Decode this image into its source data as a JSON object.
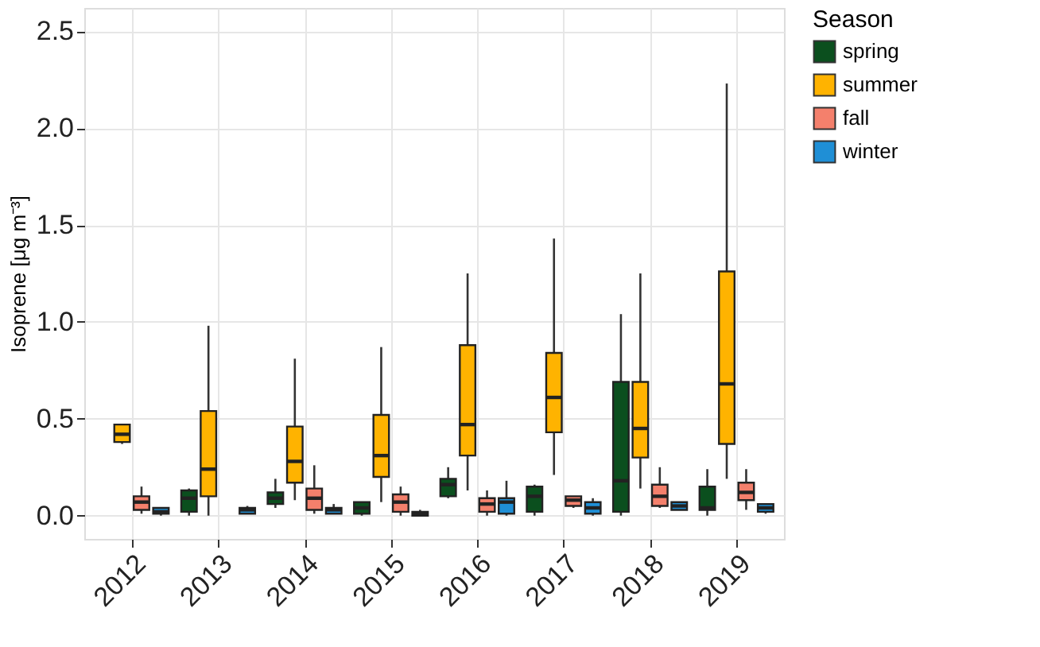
{
  "chart_data": {
    "type": "box",
    "ylabel": "Isoprene [μg m⁻³]",
    "legend_title": "Season",
    "legend": "right",
    "grid": true,
    "categories": [
      "2012",
      "2013",
      "2014",
      "2015",
      "2016",
      "2017",
      "2018",
      "2019"
    ],
    "ylim": [
      -0.12,
      2.62
    ],
    "yticks": [
      {
        "value": 0,
        "label": "0.0"
      },
      {
        "value": 0.5,
        "label": "0.5"
      },
      {
        "value": 1,
        "label": "1.0"
      },
      {
        "value": 1.5,
        "label": "1.5"
      },
      {
        "value": 2,
        "label": "2.0"
      },
      {
        "value": 2.5,
        "label": "2.5"
      }
    ],
    "series": [
      {
        "name": "spring",
        "color": "#0b4f1e",
        "boxes": [
          null,
          {
            "low": 0,
            "q1": 0.02,
            "median": 0.09,
            "q3": 0.13,
            "high": 0.14
          },
          {
            "low": 0.04,
            "q1": 0.06,
            "median": 0.09,
            "q3": 0.12,
            "high": 0.19
          },
          {
            "low": 0,
            "q1": 0.01,
            "median": 0.04,
            "q3": 0.07,
            "high": 0.07
          },
          {
            "low": 0.09,
            "q1": 0.1,
            "median": 0.16,
            "q3": 0.19,
            "high": 0.25
          },
          {
            "low": 0,
            "q1": 0.02,
            "median": 0.1,
            "q3": 0.15,
            "high": 0.16
          },
          {
            "low": 0,
            "q1": 0.02,
            "median": 0.18,
            "q3": 0.69,
            "high": 1.04
          },
          {
            "low": 0,
            "q1": 0.03,
            "median": 0.04,
            "q3": 0.15,
            "high": 0.24
          }
        ]
      },
      {
        "name": "summer",
        "color": "#ffb300",
        "boxes": [
          {
            "low": 0.37,
            "q1": 0.38,
            "median": 0.42,
            "q3": 0.47,
            "high": 0.47
          },
          {
            "low": 0,
            "q1": 0.1,
            "median": 0.24,
            "q3": 0.54,
            "high": 0.98
          },
          {
            "low": 0.08,
            "q1": 0.17,
            "median": 0.28,
            "q3": 0.46,
            "high": 0.81
          },
          {
            "low": 0.07,
            "q1": 0.2,
            "median": 0.31,
            "q3": 0.52,
            "high": 0.87
          },
          {
            "low": 0.13,
            "q1": 0.31,
            "median": 0.47,
            "q3": 0.88,
            "high": 1.25
          },
          {
            "low": 0.21,
            "q1": 0.43,
            "median": 0.61,
            "q3": 0.84,
            "high": 1.43
          },
          {
            "low": 0.14,
            "q1": 0.3,
            "median": 0.45,
            "q3": 0.69,
            "high": 1.25
          },
          {
            "low": 0.19,
            "q1": 0.37,
            "median": 0.68,
            "q3": 1.26,
            "high": 2.23
          }
        ]
      },
      {
        "name": "fall",
        "color": "#f4806c",
        "boxes": [
          {
            "low": 0.01,
            "q1": 0.03,
            "median": 0.07,
            "q3": 0.1,
            "high": 0.15
          },
          null,
          {
            "low": 0.01,
            "q1": 0.03,
            "median": 0.09,
            "q3": 0.14,
            "high": 0.26
          },
          {
            "low": 0,
            "q1": 0.02,
            "median": 0.07,
            "q3": 0.11,
            "high": 0.15
          },
          {
            "low": 0,
            "q1": 0.02,
            "median": 0.06,
            "q3": 0.09,
            "high": 0.13
          },
          {
            "low": 0.04,
            "q1": 0.05,
            "median": 0.08,
            "q3": 0.1,
            "high": 0.1
          },
          {
            "low": 0.04,
            "q1": 0.05,
            "median": 0.1,
            "q3": 0.16,
            "high": 0.25
          },
          {
            "low": 0.03,
            "q1": 0.08,
            "median": 0.12,
            "q3": 0.17,
            "high": 0.24
          }
        ]
      },
      {
        "name": "winter",
        "color": "#1f8fd6",
        "boxes": [
          {
            "low": 0,
            "q1": 0.01,
            "median": 0.02,
            "q3": 0.04,
            "high": 0.04
          },
          {
            "low": 0.01,
            "q1": 0.01,
            "median": 0.03,
            "q3": 0.04,
            "high": 0.05
          },
          {
            "low": 0.01,
            "q1": 0.01,
            "median": 0.03,
            "q3": 0.04,
            "high": 0.06
          },
          {
            "low": 0,
            "q1": 0,
            "median": 0.01,
            "q3": 0.02,
            "high": 0.03
          },
          {
            "low": 0,
            "q1": 0.01,
            "median": 0.07,
            "q3": 0.09,
            "high": 0.18
          },
          {
            "low": 0,
            "q1": 0.01,
            "median": 0.04,
            "q3": 0.07,
            "high": 0.09
          },
          {
            "low": 0.03,
            "q1": 0.03,
            "median": 0.05,
            "q3": 0.07,
            "high": 0.07
          },
          {
            "low": 0.01,
            "q1": 0.02,
            "median": 0.04,
            "q3": 0.06,
            "high": 0.06
          }
        ]
      }
    ]
  }
}
